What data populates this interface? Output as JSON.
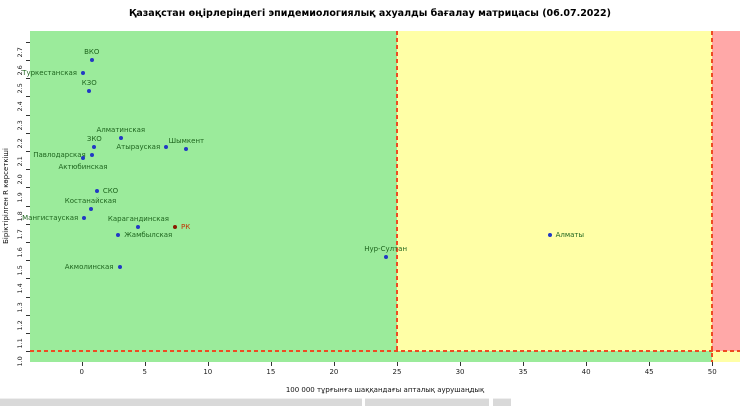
{
  "title": "Қазақстан өңірлеріндегі эпидемиологиялық ахуалды бағалау матрицасы  (06.07.2022)",
  "chart_data": {
    "type": "scatter",
    "title": "Қазақстан өңірлеріндегі эпидемиологиялық ахуалды бағалау матрицасы  (06.07.2022)",
    "xlabel": "100 000 тұрғынға шаққандағы апталық аурушаңдық",
    "ylabel": "Біріктірілген R көрсеткіші",
    "xlim": [
      -4.1,
      52.2
    ],
    "ylim": [
      0.94,
      2.76
    ],
    "x_ticks": [
      0,
      5,
      10,
      15,
      20,
      25,
      30,
      35,
      40,
      45,
      50
    ],
    "y_ticks": [
      1.0,
      1.1,
      1.2,
      1.3,
      1.4,
      1.5,
      1.6,
      1.7,
      1.8,
      1.9,
      2.0,
      2.1,
      2.2,
      2.3,
      2.4,
      2.5,
      2.6,
      2.7
    ],
    "grid": false,
    "legend": "none",
    "thresholds": {
      "incidence_warning": 25,
      "incidence_danger": 50,
      "r": 1.0
    },
    "zone_colors": {
      "green": "#9BEB9B",
      "yellow": "#FFFFA6",
      "red": "#FFA8A8"
    },
    "threshold_line_color": "#EE4B22",
    "point_color": "#2239C4",
    "national_point_color": "#8B1A00",
    "label_color": "#1E651E",
    "national_label_color": "#C23000",
    "points": [
      {
        "name": "ВКО",
        "x": 0.8,
        "y": 2.6,
        "label_pos": "above",
        "series": "region"
      },
      {
        "name": "Туркестанская",
        "x": 0.1,
        "y": 2.53,
        "label_pos": "left",
        "series": "region"
      },
      {
        "name": "КЗО",
        "x": 0.6,
        "y": 2.43,
        "label_pos": "above",
        "series": "region"
      },
      {
        "name": "Алматинская",
        "x": 3.1,
        "y": 2.17,
        "label_pos": "above",
        "series": "region"
      },
      {
        "name": "ЗКО",
        "x": 1.0,
        "y": 2.12,
        "label_pos": "above",
        "series": "region"
      },
      {
        "name": "Атырауская",
        "x": 6.7,
        "y": 2.12,
        "label_pos": "left",
        "series": "region"
      },
      {
        "name": "Шымкент",
        "x": 8.3,
        "y": 2.11,
        "label_pos": "above",
        "series": "region"
      },
      {
        "name": "Павлодарская",
        "x": 0.8,
        "y": 2.08,
        "label_pos": "left",
        "series": "region"
      },
      {
        "name": "Актюбинская",
        "x": 0.1,
        "y": 2.06,
        "label_pos": "below",
        "series": "region"
      },
      {
        "name": "СКО",
        "x": 1.2,
        "y": 1.88,
        "label_pos": "right",
        "series": "region"
      },
      {
        "name": "Костанайская",
        "x": 0.7,
        "y": 1.78,
        "label_pos": "above",
        "series": "region"
      },
      {
        "name": "Мангистауская",
        "x": 0.2,
        "y": 1.73,
        "label_pos": "left",
        "series": "region"
      },
      {
        "name": "Карагандинская",
        "x": 4.5,
        "y": 1.68,
        "label_pos": "above",
        "series": "region"
      },
      {
        "name": "РК",
        "x": 7.4,
        "y": 1.68,
        "label_pos": "right",
        "series": "national"
      },
      {
        "name": "Жамбылская",
        "x": 2.9,
        "y": 1.64,
        "label_pos": "right",
        "series": "region"
      },
      {
        "name": "Акмолинская",
        "x": 3.0,
        "y": 1.46,
        "label_pos": "left",
        "series": "region"
      },
      {
        "name": "Нур-Султан",
        "x": 24.1,
        "y": 1.52,
        "label_pos": "above",
        "series": "region"
      },
      {
        "name": "Алматы",
        "x": 37.1,
        "y": 1.64,
        "label_pos": "right",
        "series": "region"
      }
    ]
  }
}
